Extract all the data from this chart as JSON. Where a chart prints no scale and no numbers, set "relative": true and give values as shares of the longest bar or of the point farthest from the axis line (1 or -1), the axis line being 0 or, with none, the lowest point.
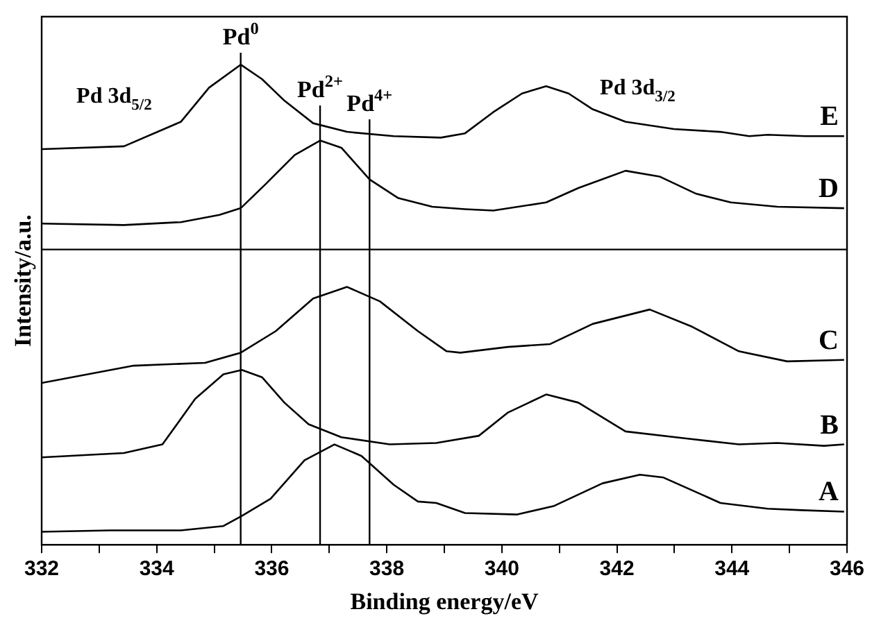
{
  "chart_data": {
    "type": "line",
    "relative": true,
    "xlabel": "Binding energy/eV",
    "ylabel": "Intensity/a.u.",
    "xlim": [
      332,
      346
    ],
    "xticks": [
      332,
      {
        "value": 333,
        "label": null
      },
      334,
      {
        "value": 335,
        "label": null
      },
      336,
      {
        "value": 337,
        "label": null
      },
      338,
      {
        "value": 339,
        "label": null
      },
      340,
      {
        "value": 341,
        "label": null
      },
      342,
      {
        "value": 343,
        "label": null
      },
      344,
      {
        "value": 345,
        "label": null
      },
      346
    ],
    "legend": false,
    "grid": false,
    "marker": "none",
    "line_style": "solid",
    "series": [
      {
        "name": "E",
        "color": "#000000",
        "x": [
          332.0,
          333.43,
          334.42,
          334.91,
          335.46,
          335.83,
          336.22,
          336.72,
          337.31,
          338.12,
          338.94,
          339.36,
          339.85,
          340.35,
          340.77,
          341.16,
          341.58,
          342.15,
          342.99,
          343.8,
          344.3,
          344.62,
          345.28,
          345.95
        ],
        "values": [
          0.824,
          0.83,
          0.881,
          0.952,
          1.0,
          0.97,
          0.925,
          0.878,
          0.86,
          0.851,
          0.848,
          0.857,
          0.901,
          0.94,
          0.955,
          0.94,
          0.907,
          0.881,
          0.866,
          0.86,
          0.851,
          0.854,
          0.851,
          0.851
        ]
      },
      {
        "name": "D",
        "color": "#000000",
        "x": [
          332.0,
          333.43,
          334.42,
          335.09,
          335.46,
          335.9,
          336.4,
          336.84,
          337.21,
          337.7,
          338.2,
          338.79,
          339.36,
          339.85,
          340.77,
          341.33,
          342.15,
          342.74,
          343.38,
          343.98,
          344.79,
          345.95
        ],
        "values": [
          0.669,
          0.666,
          0.672,
          0.687,
          0.701,
          0.752,
          0.812,
          0.842,
          0.827,
          0.761,
          0.722,
          0.704,
          0.699,
          0.696,
          0.713,
          0.743,
          0.779,
          0.767,
          0.731,
          0.713,
          0.704,
          0.701
        ]
      },
      {
        "name": "C",
        "color": "#000000",
        "x": [
          332.0,
          333.6,
          334.84,
          335.46,
          336.07,
          336.72,
          337.31,
          337.88,
          338.54,
          339.04,
          339.28,
          340.1,
          340.84,
          341.58,
          342.57,
          343.31,
          344.12,
          344.96,
          345.95
        ],
        "values": [
          0.337,
          0.373,
          0.379,
          0.4,
          0.445,
          0.513,
          0.537,
          0.507,
          0.445,
          0.403,
          0.4,
          0.412,
          0.418,
          0.46,
          0.49,
          0.454,
          0.403,
          0.382,
          0.385
        ]
      },
      {
        "name": "B",
        "color": "#000000",
        "x": [
          332.0,
          333.43,
          334.1,
          334.67,
          335.16,
          335.48,
          335.83,
          336.22,
          336.64,
          337.21,
          338.05,
          338.86,
          339.6,
          340.1,
          340.77,
          341.33,
          342.15,
          343.23,
          344.12,
          344.79,
          345.6,
          345.95
        ],
        "values": [
          0.182,
          0.191,
          0.209,
          0.304,
          0.355,
          0.364,
          0.349,
          0.296,
          0.251,
          0.224,
          0.209,
          0.212,
          0.227,
          0.275,
          0.313,
          0.296,
          0.236,
          0.221,
          0.209,
          0.212,
          0.206,
          0.209
        ]
      },
      {
        "name": "A",
        "color": "#000000",
        "x": [
          332.0,
          333.19,
          334.42,
          335.16,
          335.48,
          335.98,
          336.57,
          337.09,
          337.56,
          338.12,
          338.54,
          338.86,
          339.36,
          340.27,
          340.91,
          341.75,
          342.4,
          342.81,
          343.8,
          344.62,
          345.21,
          345.95
        ],
        "values": [
          0.027,
          0.03,
          0.03,
          0.039,
          0.06,
          0.096,
          0.176,
          0.209,
          0.185,
          0.125,
          0.09,
          0.087,
          0.066,
          0.063,
          0.081,
          0.128,
          0.146,
          0.14,
          0.087,
          0.075,
          0.072,
          0.069
        ]
      }
    ],
    "ref_lines": [
      {
        "axis": "x",
        "value": 335.46,
        "label": "Pd$^{0}$"
      },
      {
        "axis": "x",
        "value": 336.84,
        "label": "Pd$^{2+}$"
      },
      {
        "axis": "x",
        "value": 337.7,
        "label": "Pd$^{4+}$"
      },
      {
        "axis": "y",
        "value": 0.615
      }
    ],
    "annotations": [
      "Pd 3d$_{5/2}$",
      "Pd 3d$_{3/2}$"
    ]
  }
}
